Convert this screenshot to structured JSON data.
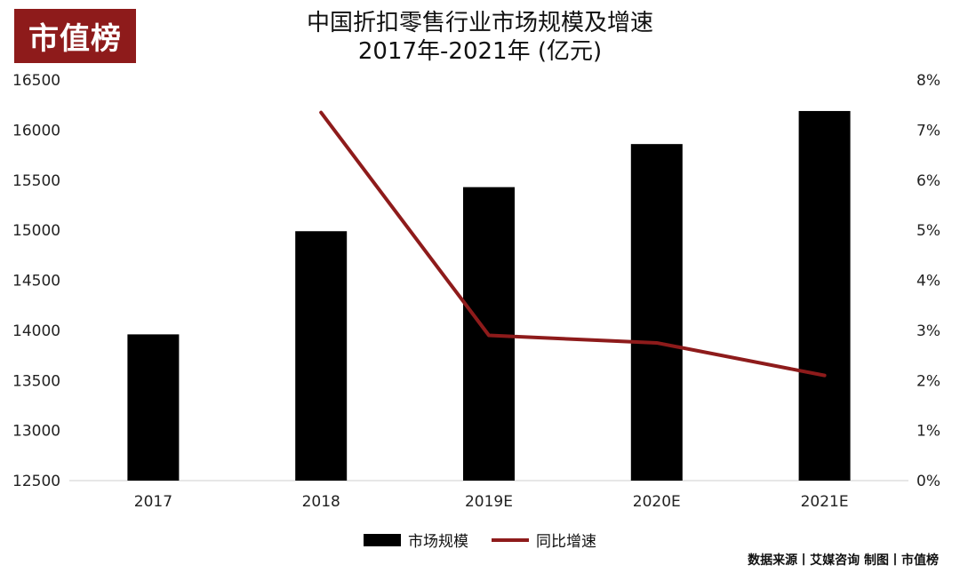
{
  "logo": {
    "text": "市值榜"
  },
  "title": {
    "line1": "中国折扣零售行业市场规模及增速",
    "line2": "2017年-2021年 (亿元)"
  },
  "legend": {
    "bar_label": "市场规模",
    "line_label": "同比增速"
  },
  "source": "数据来源丨艾媒咨询 制图丨市值榜",
  "colors": {
    "bar": "#000000",
    "line": "#8e1b1b",
    "logo_bg": "#8e1b1b"
  },
  "chart_data": {
    "type": "bar",
    "categories": [
      "2017",
      "2018",
      "2019E",
      "2020E",
      "2021E"
    ],
    "series": [
      {
        "name": "市场规模",
        "type": "bar",
        "axis": "left",
        "values": [
          13960,
          14990,
          15430,
          15860,
          16190
        ]
      },
      {
        "name": "同比增速",
        "type": "line",
        "axis": "right",
        "values": [
          null,
          7.35,
          2.9,
          2.75,
          2.1
        ]
      }
    ],
    "y_left": {
      "min": 12500,
      "max": 16500,
      "ticks": [
        12500,
        13000,
        13500,
        14000,
        14500,
        15000,
        15500,
        16000,
        16500
      ],
      "tick_labels": [
        "12500",
        "13000",
        "13500",
        "14000",
        "14500",
        "15000",
        "15500",
        "16000",
        "16500"
      ]
    },
    "y_right": {
      "min": 0,
      "max": 8,
      "ticks": [
        0,
        1,
        2,
        3,
        4,
        5,
        6,
        7,
        8
      ],
      "tick_labels": [
        "0%",
        "1%",
        "2%",
        "3%",
        "4%",
        "5%",
        "6%",
        "7%",
        "8%"
      ]
    },
    "grid": false,
    "legend_position": "bottom"
  }
}
